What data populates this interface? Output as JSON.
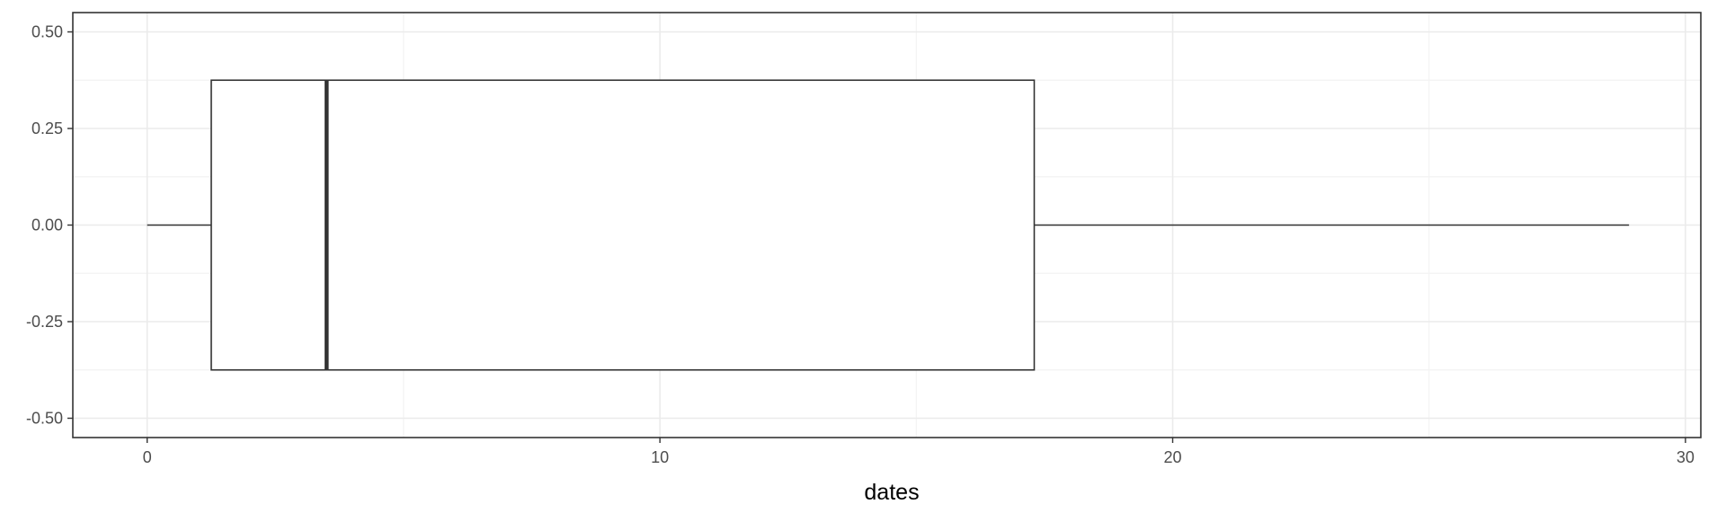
{
  "chart_data": {
    "type": "boxplot",
    "orientation": "horizontal",
    "xlabel": "dates",
    "ylabel": "",
    "title": "",
    "xlim": [
      -1.45,
      30.3
    ],
    "ylim": [
      -0.55,
      0.55
    ],
    "x_ticks": [
      0,
      10,
      20,
      30
    ],
    "x_tick_labels": [
      "0",
      "10",
      "20",
      "30"
    ],
    "x_minor_ticks": [
      5,
      15,
      25
    ],
    "y_ticks": [
      -0.5,
      -0.25,
      0,
      0.25,
      0.5
    ],
    "y_tick_labels": [
      "-0.50",
      "-0.25",
      "0.00",
      "0.25",
      "0.50"
    ],
    "y_minor_ticks": [
      -0.375,
      -0.125,
      0.125,
      0.375
    ],
    "grid": true,
    "box": {
      "whisker_low": 0,
      "q1": 1.25,
      "median": 3.5,
      "q3": 17.3,
      "whisker_high": 28.9,
      "y_center": 0,
      "y_bottom": -0.375,
      "y_top": 0.375
    },
    "colors": {
      "box_fill": "#ffffff",
      "box_stroke": "#333333",
      "grid_major": "#ebebeb",
      "grid_minor": "#f3f3f3",
      "panel_border": "#333333",
      "tick_label": "#4d4d4d"
    }
  }
}
